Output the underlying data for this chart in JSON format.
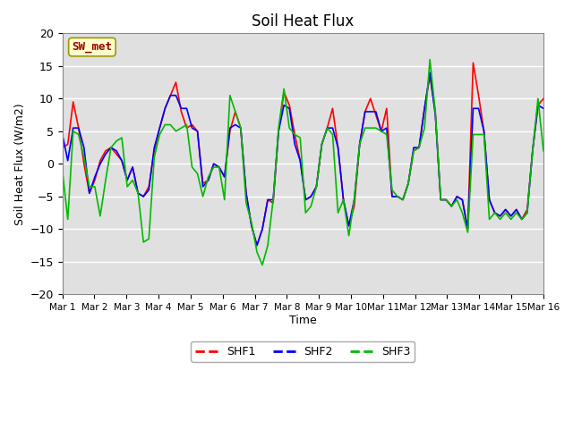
{
  "title": "Soil Heat Flux",
  "xlabel": "Time",
  "ylabel": "Soil Heat Flux (W/m2)",
  "ylim": [
    -20,
    20
  ],
  "yticks": [
    -20,
    -15,
    -10,
    -5,
    0,
    5,
    10,
    15,
    20
  ],
  "xtick_labels": [
    "Mar 1",
    "Mar 2",
    "Mar 3",
    "Mar 4",
    "Mar 5",
    "Mar 6",
    "Mar 7",
    "Mar 8",
    "Mar 9",
    "Mar 10",
    "Mar 11",
    "Mar 12",
    "Mar 13",
    "Mar 14",
    "Mar 15",
    "Mar 16"
  ],
  "annotation_text": "SW_met",
  "annotation_bg": "#ffffcc",
  "annotation_border": "#999900",
  "annotation_text_color": "#990000",
  "plot_bg_color": "#e0e0e0",
  "fig_bg_color": "#ffffff",
  "grid_color": "#ffffff",
  "colors": {
    "SHF1": "#ff0000",
    "SHF2": "#0000ff",
    "SHF3": "#00bb00"
  },
  "SHF1": [
    2.5,
    3.0,
    9.5,
    5.5,
    0.0,
    -4.5,
    -2.5,
    0.5,
    2.0,
    2.5,
    1.5,
    0.5,
    -2.5,
    -0.5,
    -4.5,
    -5.0,
    -3.5,
    2.0,
    5.5,
    8.5,
    10.5,
    12.5,
    8.0,
    5.5,
    6.0,
    5.0,
    -3.0,
    -2.5,
    0.0,
    -0.5,
    -2.0,
    5.0,
    8.0,
    5.5,
    -4.5,
    -9.5,
    -12.5,
    -10.0,
    -5.5,
    -6.0,
    5.0,
    11.0,
    9.0,
    4.5,
    0.5,
    -5.5,
    -5.0,
    -3.5,
    3.0,
    5.5,
    8.5,
    2.5,
    -5.5,
    -9.5,
    -6.5,
    3.0,
    8.0,
    10.0,
    7.5,
    5.0,
    8.5,
    -5.0,
    -5.0,
    -5.5,
    -3.0,
    2.0,
    2.5,
    8.5,
    13.5,
    8.0,
    -5.5,
    -5.5,
    -6.5,
    -5.0,
    -5.5,
    -10.0,
    15.5,
    10.5,
    5.0,
    -5.5,
    -7.5,
    -8.0,
    -7.0,
    -8.0,
    -7.0,
    -8.5,
    -7.0,
    2.0,
    9.0,
    10.0
  ],
  "SHF2": [
    4.5,
    0.5,
    5.5,
    5.5,
    2.5,
    -4.5,
    -2.0,
    0.0,
    1.5,
    2.5,
    2.0,
    0.5,
    -2.5,
    -0.5,
    -4.5,
    -5.0,
    -4.0,
    2.5,
    5.5,
    8.5,
    10.5,
    10.5,
    8.5,
    8.5,
    5.5,
    5.0,
    -3.5,
    -2.5,
    0.0,
    -0.5,
    -2.0,
    5.5,
    6.0,
    5.5,
    -4.5,
    -9.5,
    -12.5,
    -10.0,
    -5.5,
    -5.5,
    5.0,
    9.0,
    8.5,
    3.0,
    0.5,
    -5.5,
    -5.0,
    -3.5,
    3.0,
    5.5,
    5.5,
    2.5,
    -5.5,
    -9.5,
    -5.5,
    3.0,
    8.0,
    8.0,
    8.0,
    5.0,
    5.5,
    -5.0,
    -5.0,
    -5.5,
    -3.0,
    2.5,
    2.5,
    8.5,
    14.0,
    7.5,
    -5.5,
    -5.5,
    -6.5,
    -5.0,
    -5.5,
    -10.0,
    8.5,
    8.5,
    5.0,
    -5.5,
    -7.5,
    -8.0,
    -7.0,
    -8.0,
    -7.0,
    -8.5,
    -7.5,
    2.0,
    9.0,
    8.5
  ],
  "SHF3": [
    -1.0,
    -8.5,
    5.0,
    4.5,
    1.0,
    -3.5,
    -3.5,
    -8.0,
    -2.5,
    2.5,
    3.5,
    4.0,
    -3.5,
    -2.5,
    -4.5,
    -12.0,
    -11.5,
    1.0,
    4.5,
    6.0,
    6.0,
    5.0,
    5.5,
    6.0,
    -0.5,
    -1.5,
    -5.0,
    -2.0,
    -0.5,
    -0.5,
    -5.5,
    10.5,
    8.0,
    5.5,
    -6.0,
    -9.0,
    -13.5,
    -15.5,
    -12.5,
    -5.5,
    5.5,
    11.5,
    5.5,
    4.5,
    4.0,
    -7.5,
    -6.5,
    -3.5,
    3.0,
    5.5,
    4.5,
    -7.5,
    -5.5,
    -11.0,
    -5.5,
    3.0,
    5.5,
    5.5,
    5.5,
    5.0,
    4.5,
    -4.0,
    -5.0,
    -5.5,
    -3.0,
    2.0,
    2.5,
    5.5,
    16.0,
    8.0,
    -5.5,
    -5.5,
    -6.5,
    -5.5,
    -7.5,
    -10.5,
    4.5,
    4.5,
    4.5,
    -8.5,
    -7.5,
    -8.5,
    -7.5,
    -8.5,
    -7.5,
    -8.5,
    -7.5,
    2.0,
    10.0,
    2.0
  ]
}
